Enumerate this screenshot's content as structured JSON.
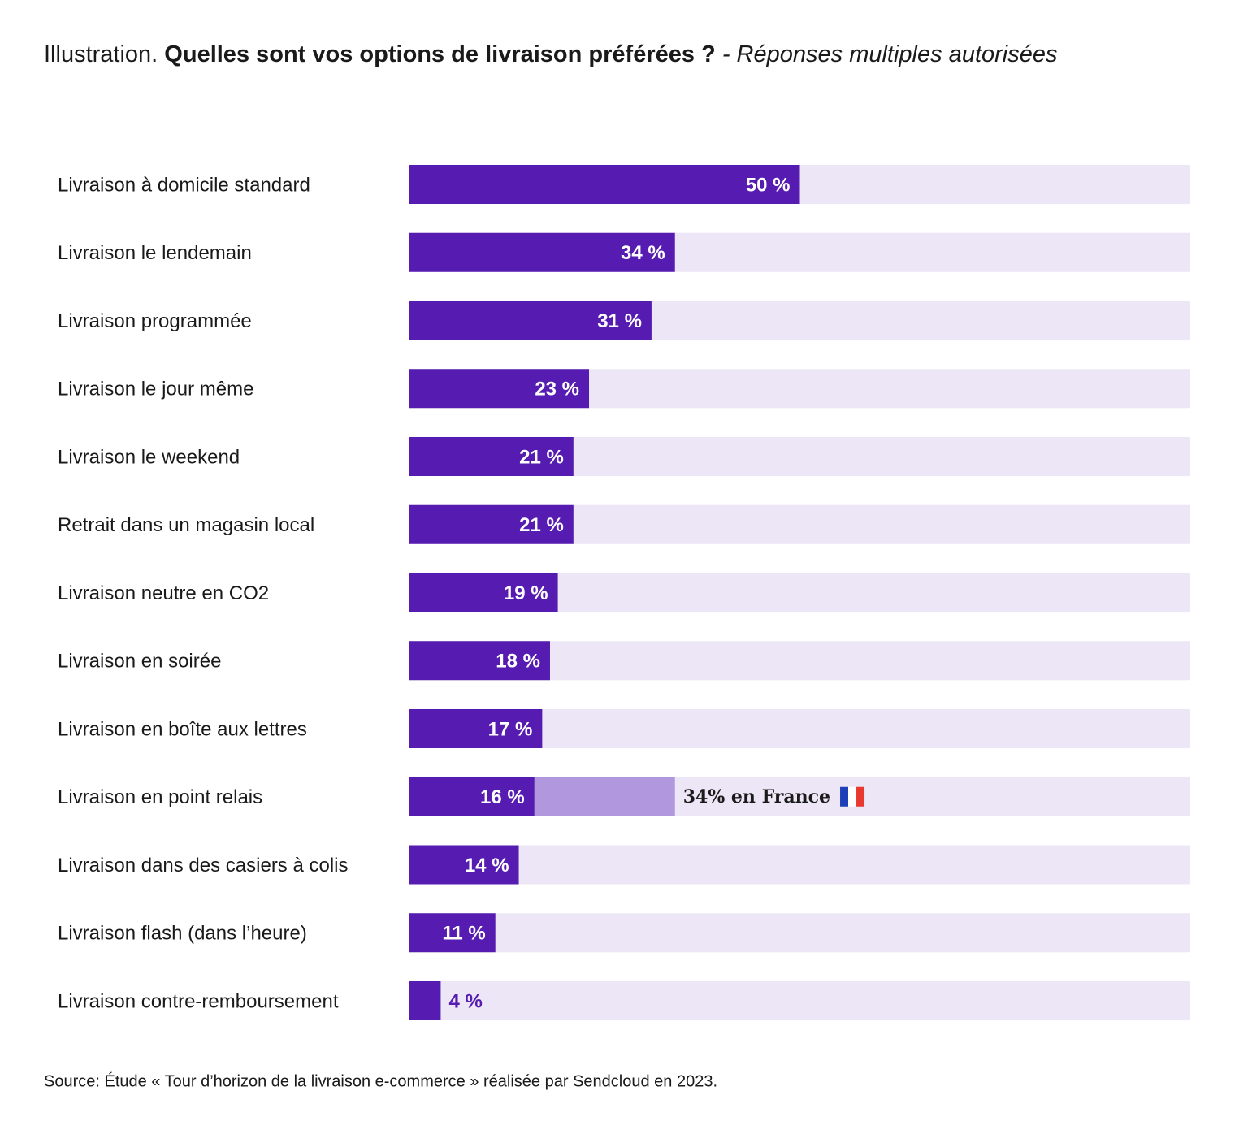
{
  "chart_data": {
    "type": "bar",
    "title_prefix": "Illustration.",
    "title": "Quelles sont vos options de livraison préférées ?",
    "subtitle": "- Réponses multiples autorisées",
    "categories": [
      "Livraison à domicile standard",
      "Livraison le lendemain",
      "Livraison programmée",
      "Livraison le jour même",
      "Livraison le weekend",
      "Retrait dans un magasin local",
      "Livraison neutre en CO2",
      "Livraison en soirée",
      "Livraison en boîte aux lettres",
      "Livraison en point relais",
      "Livraison dans des casiers à colis",
      "Livraison flash (dans l’heure)",
      "Livraison contre-remboursement"
    ],
    "values": [
      50,
      34,
      31,
      23,
      21,
      21,
      19,
      18,
      17,
      16,
      14,
      11,
      4
    ],
    "value_labels": [
      "50 %",
      "34 %",
      "31 %",
      "23 %",
      "21 %",
      "21 %",
      "19 %",
      "18 %",
      "17 %",
      "16 %",
      "14 %",
      "11 %",
      "4 %"
    ],
    "color": "#561bb1",
    "track_color": "#ece6f6",
    "xlim": [
      0,
      100
    ],
    "annotation": {
      "category": "Livraison en point relais",
      "value": 34,
      "text": "34% en France",
      "color": "#b197de"
    },
    "source": "Source: Étude « Tour d’horizon de la livraison e-commerce » réalisée par Sendcloud en 2023."
  }
}
